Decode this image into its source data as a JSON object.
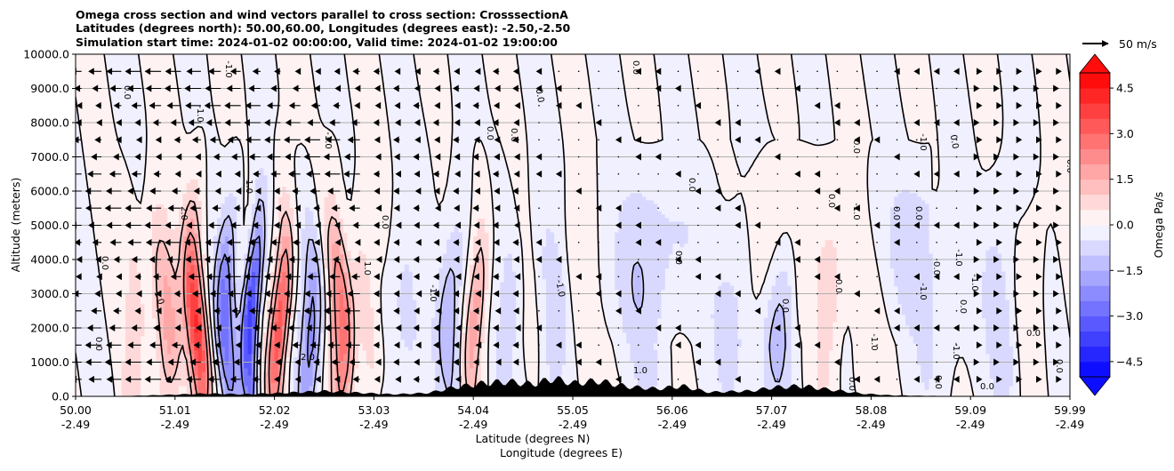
{
  "chart_data": {
    "type": "heatmap",
    "title_lines": [
      "Omega cross section and wind vectors parallel to cross section: CrosssectionA",
      "Latitudes (degrees north): 50.00,60.00, Longitudes (degrees east): -2.50,-2.50",
      "Simulation start time: 2024-01-02 00:00:00, Valid time: 2024-01-02 19:00:00"
    ],
    "xlabel": "Latitude (degrees N)",
    "xlabel2": "Longitude (degrees E)",
    "ylabel": "Altitude (meters)",
    "x_ticks": [
      {
        "lat": "50.00",
        "lon": "-2.49"
      },
      {
        "lat": "51.01",
        "lon": "-2.49"
      },
      {
        "lat": "52.02",
        "lon": "-2.49"
      },
      {
        "lat": "53.03",
        "lon": "-2.49"
      },
      {
        "lat": "54.04",
        "lon": "-2.49"
      },
      {
        "lat": "55.05",
        "lon": "-2.49"
      },
      {
        "lat": "56.06",
        "lon": "-2.49"
      },
      {
        "lat": "57.07",
        "lon": "-2.49"
      },
      {
        "lat": "58.08",
        "lon": "-2.49"
      },
      {
        "lat": "59.09",
        "lon": "-2.49"
      },
      {
        "lat": "59.99",
        "lon": "-2.49"
      }
    ],
    "xlim": [
      50.0,
      59.99
    ],
    "y_ticks": [
      "0.0",
      "1000.0",
      "2000.0",
      "3000.0",
      "4000.0",
      "5000.0",
      "6000.0",
      "7000.0",
      "8000.0",
      "9000.0",
      "10000.0"
    ],
    "ylim": [
      0,
      10000
    ],
    "grid": "horizontal",
    "colorbar": {
      "label": "Omega Pa/s",
      "ticks": [
        "4.5",
        "3.0",
        "1.5",
        "0.0",
        "−1.5",
        "−3.0",
        "−4.5"
      ],
      "range": [
        -5.0,
        5.0
      ],
      "levels": 20,
      "colormap": "bwr",
      "extend": "both"
    },
    "quiver_key": {
      "label": "50 m/s",
      "value": 50
    },
    "contour_label": "0.0",
    "contour_label_minus": "-1.0",
    "contour_label_plus": "1.0",
    "contour_label_2": "2.0",
    "omega_features": [
      {
        "lat": 50.55,
        "width": 0.1,
        "amp": 0.9
      },
      {
        "lat": 50.88,
        "width": 0.13,
        "amp": 2.2
      },
      {
        "lat": 51.22,
        "width": 0.1,
        "amp": 4.5
      },
      {
        "lat": 51.55,
        "width": 0.1,
        "amp": -3.2
      },
      {
        "lat": 51.8,
        "width": 0.08,
        "amp": -4.8
      },
      {
        "lat": 52.05,
        "width": 0.09,
        "amp": 4.0
      },
      {
        "lat": 52.33,
        "width": 0.1,
        "amp": -2.5
      },
      {
        "lat": 52.63,
        "width": 0.11,
        "amp": 3.2
      },
      {
        "lat": 52.92,
        "width": 0.1,
        "amp": 1.2
      },
      {
        "lat": 53.35,
        "width": 0.18,
        "amp": -0.8
      },
      {
        "lat": 53.8,
        "width": 0.12,
        "amp": -1.6
      },
      {
        "lat": 54.02,
        "width": 0.09,
        "amp": 2.0
      },
      {
        "lat": 54.3,
        "width": 0.1,
        "amp": -0.9
      },
      {
        "lat": 54.75,
        "width": 0.12,
        "amp": -1.1
      },
      {
        "lat": 55.05,
        "width": 0.08,
        "amp": 0.6
      },
      {
        "lat": 55.7,
        "width": 0.25,
        "amp": -0.7
      },
      {
        "lat": 56.65,
        "width": 0.2,
        "amp": -0.9
      },
      {
        "lat": 57.1,
        "width": 0.15,
        "amp": -1.4
      },
      {
        "lat": 57.55,
        "width": 0.12,
        "amp": 0.7
      },
      {
        "lat": 57.9,
        "width": 0.15,
        "amp": 0.5
      },
      {
        "lat": 58.55,
        "width": 0.25,
        "amp": -0.6
      },
      {
        "lat": 59.3,
        "width": 0.15,
        "amp": -1.1
      },
      {
        "lat": 59.65,
        "width": 0.12,
        "amp": 0.5
      }
    ],
    "terrain": [
      {
        "lat": 50.0,
        "h": 0
      },
      {
        "lat": 50.5,
        "h": 10
      },
      {
        "lat": 50.9,
        "h": 40
      },
      {
        "lat": 51.3,
        "h": 80
      },
      {
        "lat": 51.7,
        "h": 60
      },
      {
        "lat": 52.0,
        "h": 90
      },
      {
        "lat": 52.5,
        "h": 150
      },
      {
        "lat": 52.8,
        "h": 110
      },
      {
        "lat": 53.2,
        "h": 60
      },
      {
        "lat": 53.55,
        "h": 100
      },
      {
        "lat": 53.8,
        "h": 260
      },
      {
        "lat": 54.1,
        "h": 380
      },
      {
        "lat": 54.35,
        "h": 430
      },
      {
        "lat": 54.6,
        "h": 350
      },
      {
        "lat": 54.8,
        "h": 520
      },
      {
        "lat": 55.0,
        "h": 380
      },
      {
        "lat": 55.25,
        "h": 450
      },
      {
        "lat": 55.55,
        "h": 280
      },
      {
        "lat": 55.85,
        "h": 220
      },
      {
        "lat": 56.1,
        "h": 300
      },
      {
        "lat": 56.35,
        "h": 120
      },
      {
        "lat": 56.8,
        "h": 160
      },
      {
        "lat": 57.0,
        "h": 260
      },
      {
        "lat": 57.3,
        "h": 300
      },
      {
        "lat": 57.6,
        "h": 190
      },
      {
        "lat": 57.9,
        "h": 80
      },
      {
        "lat": 58.2,
        "h": 30
      },
      {
        "lat": 58.7,
        "h": 10
      },
      {
        "lat": 59.99,
        "h": 0
      }
    ]
  }
}
